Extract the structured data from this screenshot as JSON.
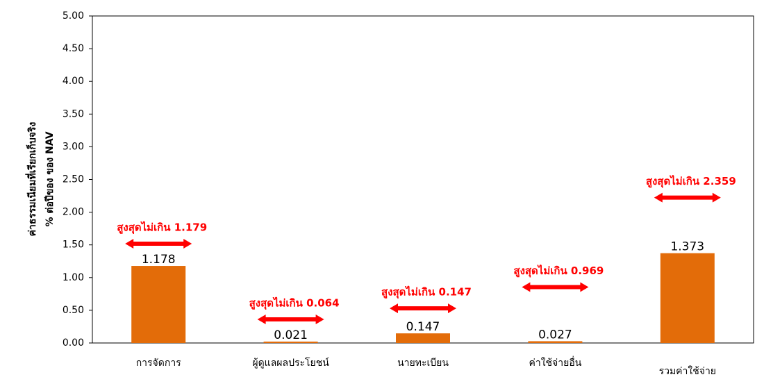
{
  "chart_data": {
    "type": "bar",
    "y_axis_label": [
      "ค่าธรรมเนียมที่เรียกเก็บจริง",
      "% ต่อปีของ ของ NAV"
    ],
    "categories": [
      "การจัดการ",
      "ผู้ดูแลผลประโยชน์",
      "นายทะเบียน",
      "ค่าใช้จ่ายอื่น",
      "รวมค่าใช้จ่าย"
    ],
    "values": [
      1.178,
      0.021,
      0.147,
      0.027,
      1.373
    ],
    "annotations": [
      "สูงสุดไม่เกิน 1.179",
      "สูงสุดไม่เกิน 0.064",
      "สูงสุดไม่เกิน 0.147",
      "สูงสุดไม่เกิน 0.969",
      "สูงสุดไม่เกิน 2.359"
    ],
    "color": "#e36c09",
    "annotation_color": "#ff0000",
    "ylim": [
      0,
      5
    ],
    "yticks": [
      {
        "value": 0,
        "label": "0.00"
      },
      {
        "value": 0.5,
        "label": "0.50"
      },
      {
        "value": 1,
        "label": "1.00"
      },
      {
        "value": 1.5,
        "label": "1.50"
      },
      {
        "value": 2,
        "label": "2.00"
      },
      {
        "value": 2.5,
        "label": "2.50"
      },
      {
        "value": 3,
        "label": "3.00"
      },
      {
        "value": 3.5,
        "label": "3.50"
      },
      {
        "value": 4,
        "label": "4.00"
      },
      {
        "value": 4.5,
        "label": "4.50"
      },
      {
        "value": 5,
        "label": "5.00"
      }
    ],
    "grid": false
  }
}
